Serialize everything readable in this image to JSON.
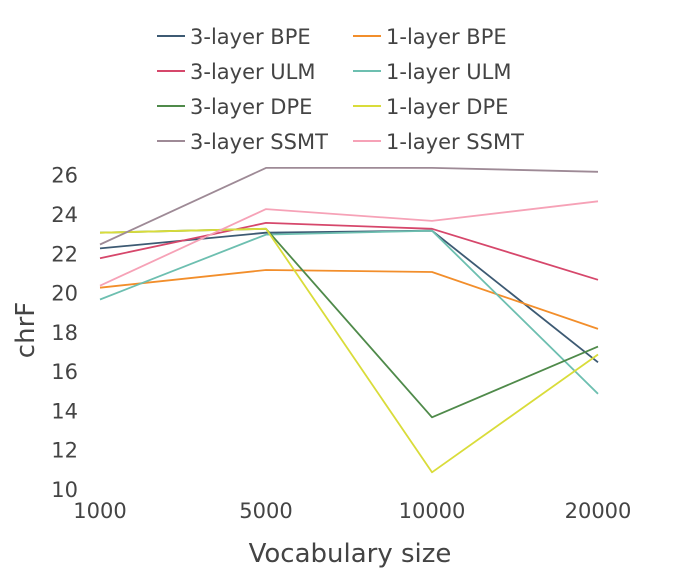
{
  "chart_data": {
    "type": "line",
    "title": "",
    "xlabel": "Vocabulary size",
    "ylabel": "chrF",
    "categories": [
      "1000",
      "5000",
      "10000",
      "20000"
    ],
    "ylim": [
      10,
      26.8
    ],
    "yticks": [
      10,
      12,
      14,
      16,
      18,
      20,
      22,
      24,
      26
    ],
    "grid": false,
    "legend_position": "top",
    "series": [
      {
        "name": "3-layer BPE",
        "color": "#3d5a73",
        "values": [
          22.3,
          23.1,
          23.2,
          16.5
        ]
      },
      {
        "name": "1-layer BPE",
        "color": "#f28e2b",
        "values": [
          20.3,
          21.2,
          21.1,
          18.2
        ]
      },
      {
        "name": "3-layer ULM",
        "color": "#d6476b",
        "values": [
          21.8,
          23.6,
          23.3,
          20.7
        ]
      },
      {
        "name": "1-layer ULM",
        "color": "#6dbfb0",
        "values": [
          19.7,
          23.0,
          23.2,
          14.9
        ]
      },
      {
        "name": "3-layer DPE",
        "color": "#4f8a4a",
        "values": [
          23.1,
          23.3,
          13.7,
          17.3
        ]
      },
      {
        "name": "1-layer DPE",
        "color": "#d9dc3a",
        "values": [
          23.1,
          23.3,
          10.9,
          16.9
        ]
      },
      {
        "name": "3-layer SSMT",
        "color": "#9e8a96",
        "values": [
          22.5,
          26.4,
          26.4,
          26.2
        ]
      },
      {
        "name": "1-layer SSMT",
        "color": "#f6a2b7",
        "values": [
          20.4,
          24.3,
          23.7,
          24.7
        ]
      }
    ]
  }
}
